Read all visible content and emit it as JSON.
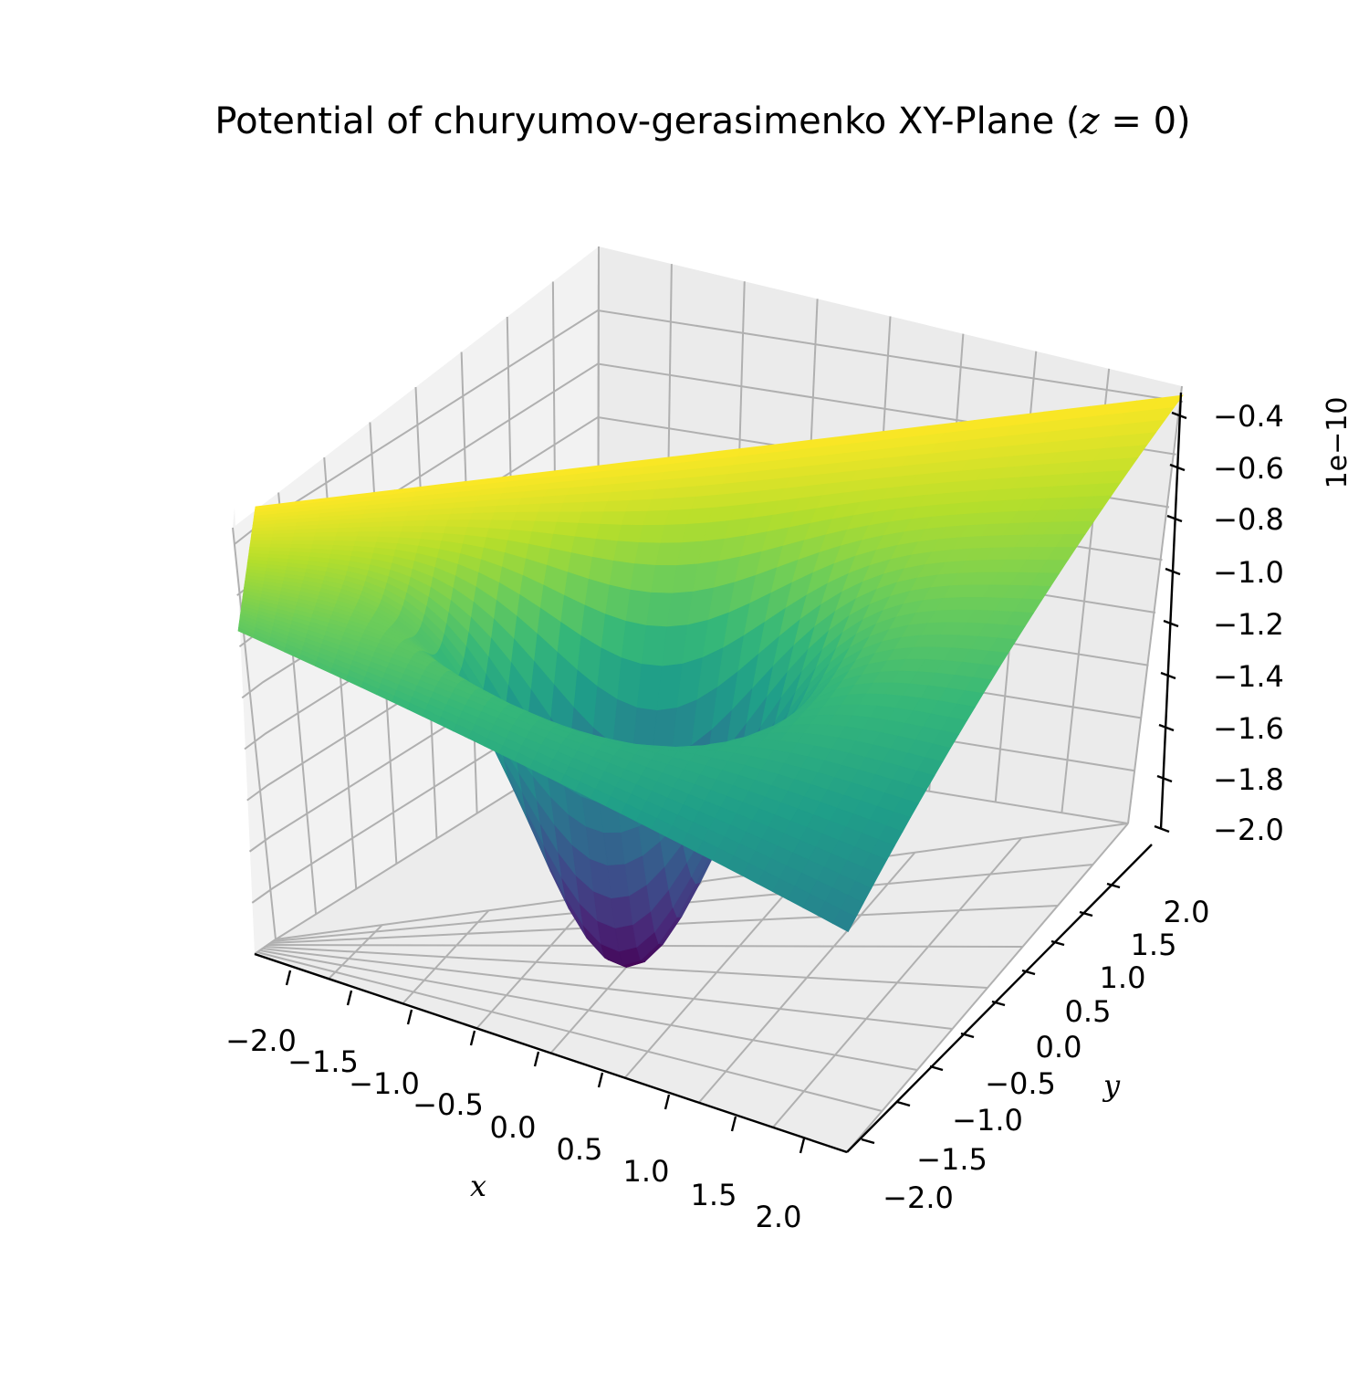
{
  "chart_data": {
    "type": "surface",
    "title": "Potential of churyumov-gerasimenko XY-Plane (",
    "title_math": "z",
    "title_suffix": " = 0)",
    "xlabel": "x",
    "ylabel": "y",
    "z_offset_label": "1e−10",
    "colormap": "viridis",
    "xlim": [
      -2.0,
      2.0
    ],
    "ylim": [
      -2.0,
      2.0
    ],
    "zlim": [
      -2.0,
      -0.35
    ],
    "x_ticks": [
      "−2.0",
      "−1.5",
      "−1.0",
      "−0.5",
      "0.0",
      "0.5",
      "1.0",
      "1.5",
      "2.0"
    ],
    "y_ticks": [
      "−2.0",
      "−1.5",
      "−1.0",
      "−0.5",
      "0.0",
      "0.5",
      "1.0",
      "1.5",
      "2.0"
    ],
    "z_ticks": [
      "−0.4",
      "−0.6",
      "−0.8",
      "−1.0",
      "−1.2",
      "−1.4",
      "−1.6",
      "−1.8",
      "−2.0"
    ],
    "surface_corners_z": {
      "x_min_y_min": -0.8,
      "x_min_y_max": -0.4,
      "x_max_y_max": -0.4,
      "x_max_y_min": -1.3
    },
    "surface_minimum": {
      "x": 0.0,
      "y": 0.0,
      "z": -2.0
    },
    "grid": true
  }
}
